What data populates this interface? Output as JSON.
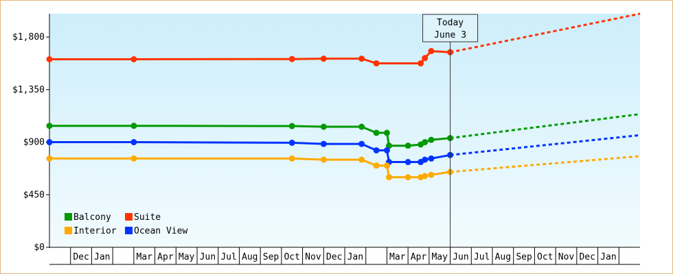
{
  "chart_data": {
    "type": "line",
    "y_axis": {
      "min": 0,
      "max": 2000,
      "ticks": [
        0,
        450,
        900,
        1350,
        1800
      ],
      "tick_labels": [
        "$0",
        "$450",
        "$900",
        "$1,350",
        "$1,800"
      ]
    },
    "x_axis": {
      "month_labels": [
        "",
        "Dec",
        "Jan",
        "",
        "Mar",
        "Apr",
        "May",
        "Jun",
        "Jul",
        "Aug",
        "Sep",
        "Oct",
        "Nov",
        "Dec",
        "Jan",
        "",
        "Mar",
        "Apr",
        "May",
        "Jun",
        "Jul",
        "Aug",
        "Sep",
        "Oct",
        "Nov",
        "Dec",
        "Jan",
        ""
      ]
    },
    "today_marker": {
      "line1": "Today",
      "line2": "June 3",
      "x": 19
    },
    "series": [
      {
        "name": "Suite",
        "color": "#ff3300",
        "points": [
          [
            0,
            1610
          ],
          [
            4,
            1610
          ],
          [
            11.5,
            1612
          ],
          [
            13,
            1615
          ],
          [
            14.8,
            1615
          ],
          [
            15.5,
            1575
          ],
          [
            17.6,
            1575
          ],
          [
            17.8,
            1620
          ],
          [
            18.1,
            1680
          ],
          [
            19,
            1670
          ]
        ],
        "forecast": [
          [
            19,
            1670
          ],
          [
            28,
            2000
          ]
        ]
      },
      {
        "name": "Balcony",
        "color": "#009900",
        "points": [
          [
            0,
            1040
          ],
          [
            4,
            1040
          ],
          [
            11.5,
            1038
          ],
          [
            13,
            1032
          ],
          [
            14.8,
            1032
          ],
          [
            15.5,
            980
          ],
          [
            16,
            980
          ],
          [
            16.1,
            870
          ],
          [
            17,
            870
          ],
          [
            17.6,
            880
          ],
          [
            17.8,
            900
          ],
          [
            18.1,
            920
          ],
          [
            19,
            935
          ]
        ],
        "forecast": [
          [
            19,
            935
          ],
          [
            28,
            1140
          ]
        ]
      },
      {
        "name": "Ocean View",
        "color": "#0033ff",
        "points": [
          [
            0,
            900
          ],
          [
            4,
            900
          ],
          [
            11.5,
            895
          ],
          [
            13,
            885
          ],
          [
            14.8,
            885
          ],
          [
            15.5,
            830
          ],
          [
            16,
            830
          ],
          [
            16.1,
            730
          ],
          [
            17,
            730
          ],
          [
            17.6,
            730
          ],
          [
            17.8,
            750
          ],
          [
            18.1,
            760
          ],
          [
            19,
            790
          ]
        ],
        "forecast": [
          [
            19,
            790
          ],
          [
            28,
            960
          ]
        ]
      },
      {
        "name": "Interior",
        "color": "#ffaa00",
        "points": [
          [
            0,
            760
          ],
          [
            4,
            760
          ],
          [
            11.5,
            760
          ],
          [
            13,
            750
          ],
          [
            14.8,
            750
          ],
          [
            15.5,
            700
          ],
          [
            16,
            700
          ],
          [
            16.1,
            600
          ],
          [
            17,
            600
          ],
          [
            17.6,
            600
          ],
          [
            17.8,
            610
          ],
          [
            18.1,
            620
          ],
          [
            19,
            645
          ]
        ],
        "forecast": [
          [
            19,
            645
          ],
          [
            28,
            780
          ]
        ]
      }
    ],
    "legend": {
      "placement": "bottom-left",
      "items": [
        {
          "label": "Balcony",
          "color": "#009900"
        },
        {
          "label": "Suite",
          "color": "#ff3300"
        },
        {
          "label": "Interior",
          "color": "#ffaa00"
        },
        {
          "label": "Ocean View",
          "color": "#0033ff"
        }
      ]
    },
    "background_gradient": {
      "top": "#cdeefb",
      "bottom": "#f2fbfe"
    },
    "grid": false
  }
}
